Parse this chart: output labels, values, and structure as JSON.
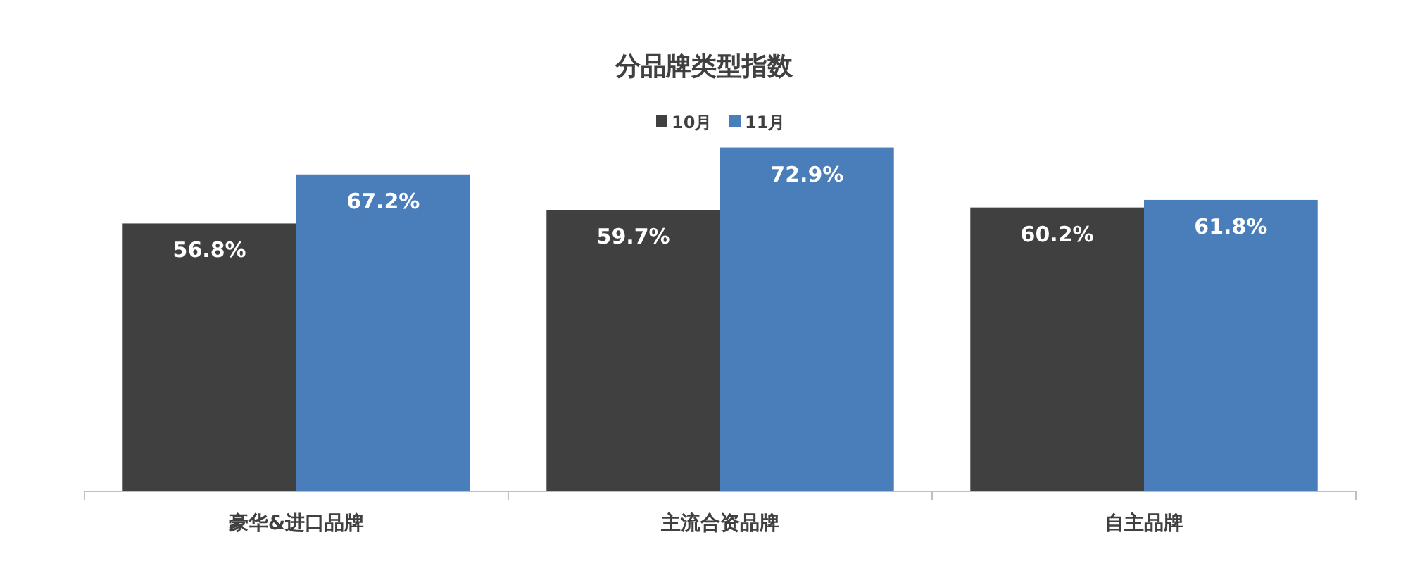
{
  "chart_data": {
    "type": "bar",
    "title": "分品牌类型指数",
    "categories": [
      "豪华&进口品牌",
      "主流合资品牌",
      "自主品牌"
    ],
    "series": [
      {
        "name": "10月",
        "color": "#404040",
        "values": [
          56.8,
          59.7,
          60.2
        ],
        "value_labels": [
          "56.8%",
          "59.7%",
          "60.2%"
        ]
      },
      {
        "name": "11月",
        "color": "#4a7ebb",
        "values": [
          67.2,
          72.9,
          61.8
        ],
        "value_labels": [
          "67.2%",
          "72.9%",
          "61.8%"
        ]
      }
    ],
    "ylim": [
      0,
      80
    ],
    "tick_labels": "x",
    "legend": "top",
    "grid": false
  }
}
